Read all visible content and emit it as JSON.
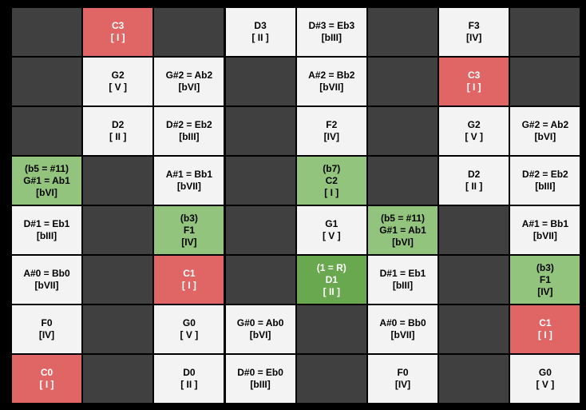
{
  "palette": {
    "dark": "#404040",
    "white": "#f3f3f3",
    "red": "#e06666",
    "green": "#93c47d",
    "root": "#6aa84f"
  },
  "ink": {
    "dark": "#000000",
    "white": "#000000",
    "red": "#ffffff",
    "green": "#000000",
    "root": "#ffffff"
  },
  "grid": {
    "rows": [
      [
        {
          "kind": "dark",
          "lines": []
        },
        {
          "kind": "red",
          "lines": [
            "C3",
            "[ I ]"
          ]
        },
        {
          "kind": "dark",
          "lines": []
        },
        {
          "kind": "white",
          "lines": [
            "D3",
            "[ II ]"
          ]
        },
        {
          "kind": "white",
          "lines": [
            "D#3 = Eb3",
            "[bIII]"
          ]
        },
        {
          "kind": "dark",
          "lines": []
        },
        {
          "kind": "white",
          "lines": [
            "F3",
            "[IV]"
          ]
        },
        {
          "kind": "dark",
          "lines": []
        }
      ],
      [
        {
          "kind": "dark",
          "lines": []
        },
        {
          "kind": "white",
          "lines": [
            "G2",
            "[ V ]"
          ]
        },
        {
          "kind": "white",
          "lines": [
            "G#2 = Ab2",
            "[bVI]"
          ]
        },
        {
          "kind": "dark",
          "lines": []
        },
        {
          "kind": "white",
          "lines": [
            "A#2 = Bb2",
            "[bVII]"
          ]
        },
        {
          "kind": "dark",
          "lines": []
        },
        {
          "kind": "red",
          "lines": [
            "C3",
            "[ I ]"
          ]
        },
        {
          "kind": "dark",
          "lines": []
        }
      ],
      [
        {
          "kind": "dark",
          "lines": []
        },
        {
          "kind": "white",
          "lines": [
            "D2",
            "[ II ]"
          ]
        },
        {
          "kind": "white",
          "lines": [
            "D#2 = Eb2",
            "[bIII]"
          ]
        },
        {
          "kind": "dark",
          "lines": []
        },
        {
          "kind": "white",
          "lines": [
            "F2",
            "[IV]"
          ]
        },
        {
          "kind": "dark",
          "lines": []
        },
        {
          "kind": "white",
          "lines": [
            "G2",
            "[ V ]"
          ]
        },
        {
          "kind": "white",
          "lines": [
            "G#2 = Ab2",
            "[bVI]"
          ]
        }
      ],
      [
        {
          "kind": "green",
          "lines": [
            "(b5 = #11)",
            "G#1 = Ab1",
            "[bVI]"
          ]
        },
        {
          "kind": "dark",
          "lines": []
        },
        {
          "kind": "white",
          "lines": [
            "A#1 = Bb1",
            "[bVII]"
          ]
        },
        {
          "kind": "dark",
          "lines": []
        },
        {
          "kind": "green",
          "lines": [
            "(b7)",
            "C2",
            "[ I ]"
          ]
        },
        {
          "kind": "dark",
          "lines": []
        },
        {
          "kind": "white",
          "lines": [
            "D2",
            "[ II ]"
          ]
        },
        {
          "kind": "white",
          "lines": [
            "D#2 = Eb2",
            "[bIII]"
          ]
        }
      ],
      [
        {
          "kind": "white",
          "lines": [
            "D#1 = Eb1",
            "[bIII]"
          ]
        },
        {
          "kind": "dark",
          "lines": []
        },
        {
          "kind": "green",
          "lines": [
            "(b3)",
            "F1",
            "[IV]"
          ]
        },
        {
          "kind": "dark",
          "lines": []
        },
        {
          "kind": "white",
          "lines": [
            "G1",
            "[ V ]"
          ]
        },
        {
          "kind": "green",
          "lines": [
            "(b5 = #11)",
            "G#1 = Ab1",
            "[bVI]"
          ]
        },
        {
          "kind": "dark",
          "lines": []
        },
        {
          "kind": "white",
          "lines": [
            "A#1 = Bb1",
            "[bVII]"
          ]
        }
      ],
      [
        {
          "kind": "white",
          "lines": [
            "A#0 = Bb0",
            "[bVII]"
          ]
        },
        {
          "kind": "dark",
          "lines": []
        },
        {
          "kind": "red",
          "lines": [
            "C1",
            "[ I ]"
          ]
        },
        {
          "kind": "dark",
          "lines": []
        },
        {
          "kind": "root",
          "lines": [
            "(1 = R)",
            "D1",
            "[ II ]"
          ]
        },
        {
          "kind": "white",
          "lines": [
            "D#1 = Eb1",
            "[bIII]"
          ]
        },
        {
          "kind": "dark",
          "lines": []
        },
        {
          "kind": "green",
          "lines": [
            "(b3)",
            "F1",
            "[IV]"
          ]
        }
      ],
      [
        {
          "kind": "white",
          "lines": [
            "F0",
            "[IV]"
          ]
        },
        {
          "kind": "dark",
          "lines": []
        },
        {
          "kind": "white",
          "lines": [
            "G0",
            "[ V ]"
          ]
        },
        {
          "kind": "white",
          "lines": [
            "G#0 = Ab0",
            "[bVI]"
          ]
        },
        {
          "kind": "dark",
          "lines": []
        },
        {
          "kind": "white",
          "lines": [
            "A#0 = Bb0",
            "[bVII]"
          ]
        },
        {
          "kind": "dark",
          "lines": []
        },
        {
          "kind": "red",
          "lines": [
            "C1",
            "[ I ]"
          ]
        }
      ],
      [
        {
          "kind": "red",
          "lines": [
            "C0",
            "[ I ]"
          ]
        },
        {
          "kind": "dark",
          "lines": []
        },
        {
          "kind": "white",
          "lines": [
            "D0",
            "[ II ]"
          ]
        },
        {
          "kind": "white",
          "lines": [
            "D#0 = Eb0",
            "[bIII]"
          ]
        },
        {
          "kind": "dark",
          "lines": []
        },
        {
          "kind": "white",
          "lines": [
            "F0",
            "[IV]"
          ]
        },
        {
          "kind": "dark",
          "lines": []
        },
        {
          "kind": "white",
          "lines": [
            "G0",
            "[ V ]"
          ]
        }
      ]
    ]
  }
}
